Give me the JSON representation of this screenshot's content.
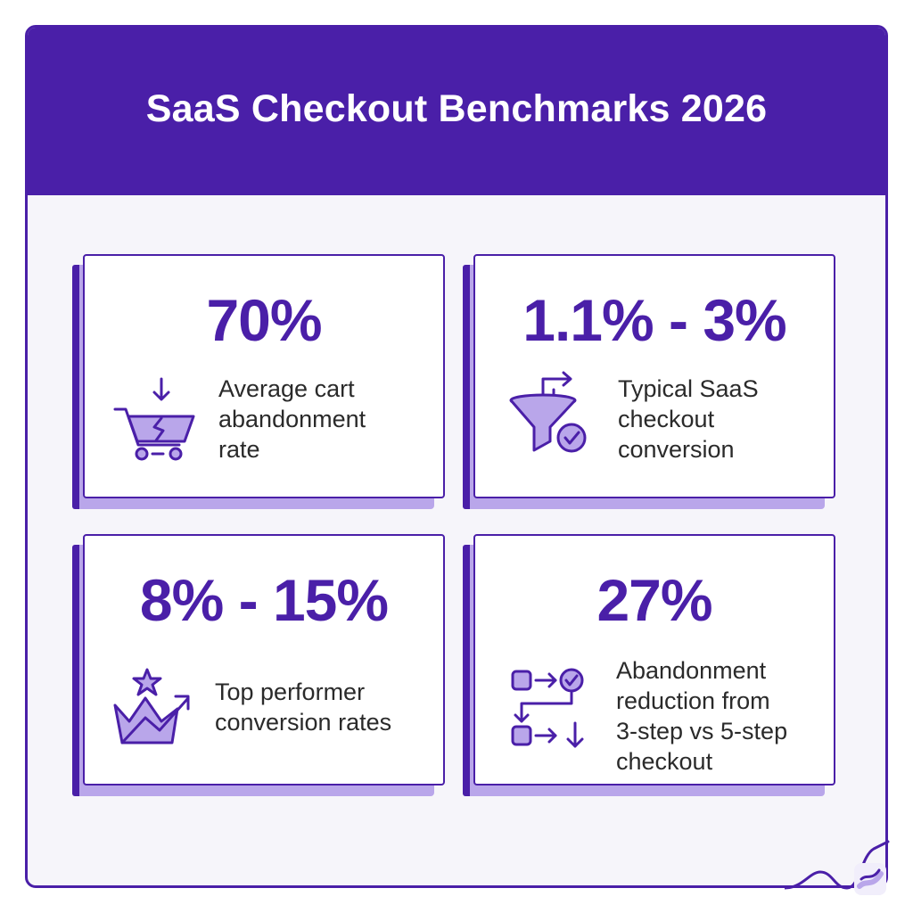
{
  "title": "SaaS Checkout Benchmarks 2026",
  "colors": {
    "primary": "#4a1fa8",
    "icon_fill": "#b9a6ea",
    "background": "#f6f5fa"
  },
  "cards": [
    {
      "value": "70%",
      "description": "Average cart\nabandonment\nrate",
      "icon": "broken-cart-icon"
    },
    {
      "value": "1.1% - 3%",
      "description": "Typical SaaS\ncheckout\nconversion",
      "icon": "funnel-check-icon"
    },
    {
      "value": "8% - 15%",
      "description": "Top performer\nconversion rates",
      "icon": "crown-growth-icon"
    },
    {
      "value": "27%",
      "description": "Abandonment\nreduction from\n3-step vs 5-step\ncheckout",
      "icon": "step-flow-icon"
    }
  ]
}
